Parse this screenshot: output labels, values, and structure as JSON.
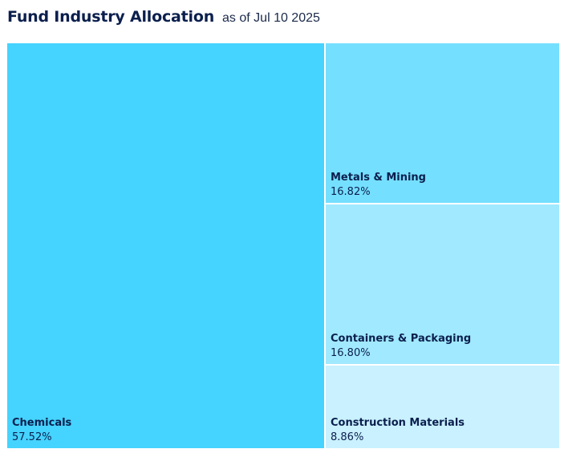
{
  "header": {
    "title": "Fund Industry Allocation",
    "subtitle": "as of Jul 10 2025"
  },
  "chart_data": {
    "type": "treemap",
    "title": "Fund Industry Allocation",
    "subtitle": "as of Jul 10 2025",
    "unit": "%",
    "items": [
      {
        "name": "Chemicals",
        "value": 57.52,
        "label": "57.52%",
        "color": "#45d3ff"
      },
      {
        "name": "Metals & Mining",
        "value": 16.82,
        "label": "16.82%",
        "color": "#75dfff"
      },
      {
        "name": "Containers & Packaging",
        "value": 16.8,
        "label": "16.80%",
        "color": "#a1e9ff"
      },
      {
        "name": "Construction Materials",
        "value": 8.86,
        "label": "8.86%",
        "color": "#c9f1ff"
      }
    ]
  }
}
